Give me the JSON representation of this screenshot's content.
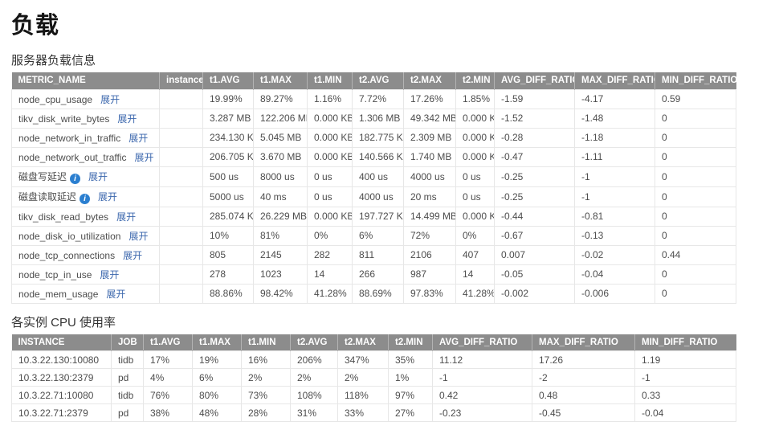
{
  "page": {
    "title": "负载"
  },
  "icons": {
    "info": "i"
  },
  "server_load": {
    "heading": "服务器负载信息",
    "expand_label": "展开",
    "columns": [
      "METRIC_NAME",
      "instance",
      "t1.AVG",
      "t1.MAX",
      "t1.MIN",
      "t2.AVG",
      "t2.MAX",
      "t2.MIN",
      "AVG_DIFF_RATIO",
      "MAX_DIFF_RATIO",
      "MIN_DIFF_RATIO"
    ],
    "rows": [
      {
        "metric": "node_cpu_usage",
        "info": false,
        "instance": "",
        "t1_avg": "19.99%",
        "t1_max": "89.27%",
        "t1_min": "1.16%",
        "t2_avg": "7.72%",
        "t2_max": "17.26%",
        "t2_min": "1.85%",
        "avg_diff": "-1.59",
        "max_diff": "-4.17",
        "min_diff": "0.59"
      },
      {
        "metric": "tikv_disk_write_bytes",
        "info": false,
        "instance": "",
        "t1_avg": "3.287 MB",
        "t1_max": "122.206 MB",
        "t1_min": "0.000 KB",
        "t2_avg": "1.306 MB",
        "t2_max": "49.342 MB",
        "t2_min": "0.000 KB",
        "avg_diff": "-1.52",
        "max_diff": "-1.48",
        "min_diff": "0"
      },
      {
        "metric": "node_network_in_traffic",
        "info": false,
        "instance": "",
        "t1_avg": "234.130 KB",
        "t1_max": "5.045 MB",
        "t1_min": "0.000 KB",
        "t2_avg": "182.775 KB",
        "t2_max": "2.309 MB",
        "t2_min": "0.000 KB",
        "avg_diff": "-0.28",
        "max_diff": "-1.18",
        "min_diff": "0"
      },
      {
        "metric": "node_network_out_traffic",
        "info": false,
        "instance": "",
        "t1_avg": "206.705 KB",
        "t1_max": "3.670 MB",
        "t1_min": "0.000 KB",
        "t2_avg": "140.566 KB",
        "t2_max": "1.740 MB",
        "t2_min": "0.000 KB",
        "avg_diff": "-0.47",
        "max_diff": "-1.11",
        "min_diff": "0"
      },
      {
        "metric": "磁盘写延迟",
        "info": true,
        "instance": "",
        "t1_avg": "500 us",
        "t1_max": "8000 us",
        "t1_min": "0 us",
        "t2_avg": "400 us",
        "t2_max": "4000 us",
        "t2_min": "0 us",
        "avg_diff": "-0.25",
        "max_diff": "-1",
        "min_diff": "0"
      },
      {
        "metric": "磁盘读取延迟",
        "info": true,
        "instance": "",
        "t1_avg": "5000 us",
        "t1_max": "40 ms",
        "t1_min": "0 us",
        "t2_avg": "4000 us",
        "t2_max": "20 ms",
        "t2_min": "0 us",
        "avg_diff": "-0.25",
        "max_diff": "-1",
        "min_diff": "0"
      },
      {
        "metric": "tikv_disk_read_bytes",
        "info": false,
        "instance": "",
        "t1_avg": "285.074 KB",
        "t1_max": "26.229 MB",
        "t1_min": "0.000 KB",
        "t2_avg": "197.727 KB",
        "t2_max": "14.499 MB",
        "t2_min": "0.000 KB",
        "avg_diff": "-0.44",
        "max_diff": "-0.81",
        "min_diff": "0"
      },
      {
        "metric": "node_disk_io_utilization",
        "info": false,
        "instance": "",
        "t1_avg": "10%",
        "t1_max": "81%",
        "t1_min": "0%",
        "t2_avg": "6%",
        "t2_max": "72%",
        "t2_min": "0%",
        "avg_diff": "-0.67",
        "max_diff": "-0.13",
        "min_diff": "0"
      },
      {
        "metric": "node_tcp_connections",
        "info": false,
        "instance": "",
        "t1_avg": "805",
        "t1_max": "2145",
        "t1_min": "282",
        "t2_avg": "811",
        "t2_max": "2106",
        "t2_min": "407",
        "avg_diff": "0.007",
        "max_diff": "-0.02",
        "min_diff": "0.44"
      },
      {
        "metric": "node_tcp_in_use",
        "info": false,
        "instance": "",
        "t1_avg": "278",
        "t1_max": "1023",
        "t1_min": "14",
        "t2_avg": "266",
        "t2_max": "987",
        "t2_min": "14",
        "avg_diff": "-0.05",
        "max_diff": "-0.04",
        "min_diff": "0"
      },
      {
        "metric": "node_mem_usage",
        "info": false,
        "instance": "",
        "t1_avg": "88.86%",
        "t1_max": "98.42%",
        "t1_min": "41.28%",
        "t2_avg": "88.69%",
        "t2_max": "97.83%",
        "t2_min": "41.28%",
        "avg_diff": "-0.002",
        "max_diff": "-0.006",
        "min_diff": "0"
      }
    ]
  },
  "cpu_usage": {
    "heading": "各实例 CPU 使用率",
    "columns": [
      "INSTANCE",
      "JOB",
      "t1.AVG",
      "t1.MAX",
      "t1.MIN",
      "t2.AVG",
      "t2.MAX",
      "t2.MIN",
      "AVG_DIFF_RATIO",
      "MAX_DIFF_RATIO",
      "MIN_DIFF_RATIO"
    ],
    "rows": [
      {
        "instance": "10.3.22.130:10080",
        "job": "tidb",
        "t1_avg": "17%",
        "t1_max": "19%",
        "t1_min": "16%",
        "t2_avg": "206%",
        "t2_max": "347%",
        "t2_min": "35%",
        "avg_diff": "11.12",
        "max_diff": "17.26",
        "min_diff": "1.19"
      },
      {
        "instance": "10.3.22.130:2379",
        "job": "pd",
        "t1_avg": "4%",
        "t1_max": "6%",
        "t1_min": "2%",
        "t2_avg": "2%",
        "t2_max": "2%",
        "t2_min": "1%",
        "avg_diff": "-1",
        "max_diff": "-2",
        "min_diff": "-1"
      },
      {
        "instance": "10.3.22.71:10080",
        "job": "tidb",
        "t1_avg": "76%",
        "t1_max": "80%",
        "t1_min": "73%",
        "t2_avg": "108%",
        "t2_max": "118%",
        "t2_min": "97%",
        "avg_diff": "0.42",
        "max_diff": "0.48",
        "min_diff": "0.33"
      },
      {
        "instance": "10.3.22.71:2379",
        "job": "pd",
        "t1_avg": "38%",
        "t1_max": "48%",
        "t1_min": "28%",
        "t2_avg": "31%",
        "t2_max": "33%",
        "t2_min": "27%",
        "avg_diff": "-0.23",
        "max_diff": "-0.45",
        "min_diff": "-0.04"
      }
    ]
  },
  "colors": {
    "header_bg": "#8c8c8c",
    "header_text": "#ffffff",
    "link_blue": "#3b67ad",
    "info_icon_blue": "#2b7fd0",
    "cell_border": "#e7e7e7",
    "cell_text": "#4d4d4d"
  }
}
